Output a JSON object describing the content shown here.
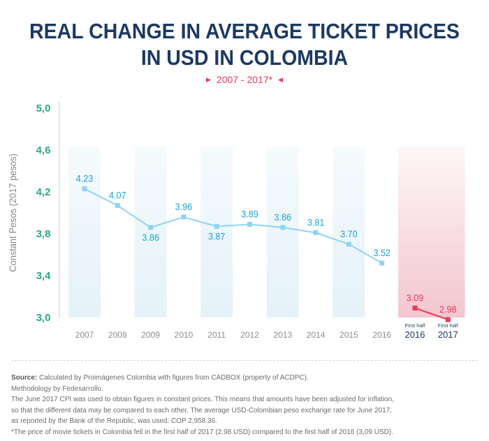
{
  "title_lines": [
    "REAL CHANGE IN AVERAGE TICKET PRICES",
    "IN USD IN COLOMBIA"
  ],
  "subtitle": "2007 - 2017*",
  "colors": {
    "title": "#1b3a63",
    "accent": "#e83a5a",
    "tick_y": "#2aa888",
    "series_main": "#8fd4f4",
    "series_main_text": "#1aa3d8",
    "band_main": "#e4f2f8",
    "band_highlight": "#f3c6cf"
  },
  "chart_data": {
    "type": "line",
    "ylabel": "Constant Pesos (2017 pesos)",
    "ylim": [
      3.0,
      5.0
    ],
    "y_ticks": [
      "5,0",
      "4,6",
      "4,2",
      "3,8",
      "3,4",
      "3,0"
    ],
    "categories": [
      {
        "sub": "",
        "label": "2007"
      },
      {
        "sub": "",
        "label": "2008"
      },
      {
        "sub": "",
        "label": "2009"
      },
      {
        "sub": "",
        "label": "2010"
      },
      {
        "sub": "",
        "label": "2011"
      },
      {
        "sub": "",
        "label": "2012"
      },
      {
        "sub": "",
        "label": "2013"
      },
      {
        "sub": "",
        "label": "2014"
      },
      {
        "sub": "",
        "label": "2015"
      },
      {
        "sub": "",
        "label": "2016"
      },
      {
        "sub": "First half",
        "label": "2016"
      },
      {
        "sub": "First half",
        "label": "2017"
      }
    ],
    "series": [
      {
        "values": [
          4.23,
          4.07,
          3.86,
          3.96,
          3.87,
          3.89,
          3.86,
          3.81,
          3.7,
          3.52,
          null,
          null
        ],
        "labels": [
          "4.23",
          "4.07",
          "3.86",
          "3.96",
          "3.87",
          "3.89",
          "3.86",
          "3.81",
          "3.70",
          "3.52",
          "",
          ""
        ]
      },
      {
        "values": [
          null,
          null,
          null,
          null,
          null,
          null,
          null,
          null,
          null,
          null,
          3.09,
          2.98
        ],
        "labels": [
          "",
          "",
          "",
          "",
          "",
          "",
          "",
          "",
          "",
          "",
          "3.09",
          "2.98"
        ]
      }
    ]
  },
  "notes": {
    "source_label": "Source:",
    "source_text": " Calculated by Proimágenes Colombia with figures from CADBOX (property of ACDPC).",
    "lines": [
      "Methodology by Fedesarrollo.",
      "The June 2017 CPI was used to obtain figures in constant prices. This means that amounts have been adjusted for inflation,",
      "so that the different data may be compared to each other. The average USD-Colombian peso exchange rate for June 2017,",
      "as reported by the Bank of the Republic, was used: COP 2,958.36.",
      "*The price of movie tickets in Colombia fell in the first half of 2017 (2,98 USD) compared to the first half of 2016 (3,09 USD)."
    ]
  }
}
